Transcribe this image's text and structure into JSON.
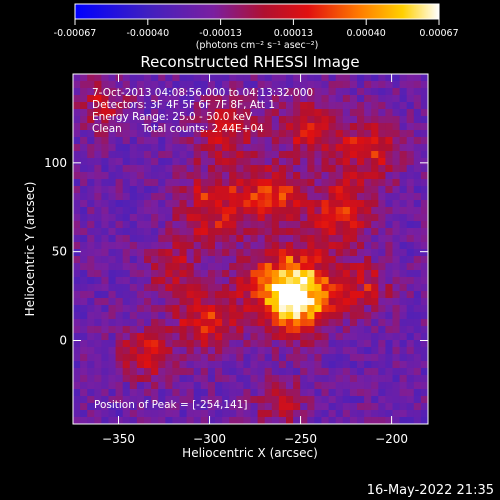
{
  "chart_data": {
    "type": "heatmap",
    "title": "Reconstructed RHESSI Image",
    "xlabel": "Heliocentric X (arcsec)",
    "ylabel": "Heliocentric Y (arcsec)",
    "xlim": [
      -375,
      -180
    ],
    "ylim": [
      -47,
      150
    ],
    "x_ticks": [
      -350,
      -300,
      -250,
      -200
    ],
    "y_ticks": [
      0,
      50,
      100
    ],
    "colorbar": {
      "ticks": [
        "-0.00067",
        "-0.00040",
        "-0.00013",
        "0.00013",
        "0.00040",
        "0.00067"
      ],
      "unit_label": "(photons cm⁻² s⁻¹ asec⁻²)",
      "range": [
        -0.00067,
        0.00067
      ],
      "colormap": "blue-purple-red-orange-yellow-white"
    },
    "info_lines": [
      "7-Oct-2013 04:08:56.000 to 04:13:32.000",
      "Detectors: 3F 4F 5F 6F 7F 8F, Att 1",
      "Energy Range: 25.0 - 50.0 keV",
      "Clean      Total counts: 2.44E+04"
    ],
    "peak_text": "Position of Peak = [-254,141]",
    "sources": [
      {
        "name": "peak",
        "x": -254,
        "y": 141
      },
      {
        "x": -258,
        "y": 30,
        "peak": 0.00065,
        "sigma": 16
      },
      {
        "x": -250,
        "y": 22,
        "peak": 0.00055,
        "sigma": 11
      },
      {
        "x": -303,
        "y": 10,
        "peak": 0.00038,
        "sigma": 12
      },
      {
        "x": -335,
        "y": -8,
        "peak": 0.00035,
        "sigma": 10
      },
      {
        "x": -297,
        "y": 75,
        "peak": 0.00042,
        "sigma": 14
      },
      {
        "x": -265,
        "y": 82,
        "peak": 0.00045,
        "sigma": 10
      },
      {
        "x": -228,
        "y": 72,
        "peak": 0.0004,
        "sigma": 13
      },
      {
        "x": -212,
        "y": 108,
        "peak": 0.0004,
        "sigma": 12
      },
      {
        "x": -245,
        "y": 120,
        "peak": 0.00035,
        "sigma": 12
      },
      {
        "x": -290,
        "y": 118,
        "peak": 0.00035,
        "sigma": 12
      },
      {
        "x": -358,
        "y": 132,
        "peak": 0.00028,
        "sigma": 10
      },
      {
        "x": -262,
        "y": -35,
        "peak": 0.0003,
        "sigma": 9
      },
      {
        "x": -215,
        "y": 30,
        "peak": 0.00032,
        "sigma": 10
      },
      {
        "x": -320,
        "y": 40,
        "peak": 0.0003,
        "sigma": 10
      }
    ]
  },
  "timestamp": "16-May-2022 21:35"
}
